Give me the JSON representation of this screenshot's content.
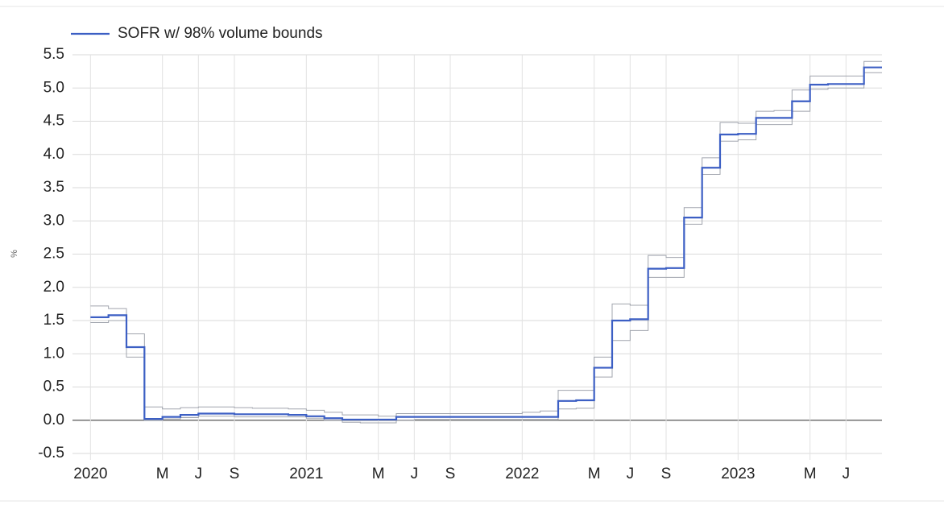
{
  "chart_data": {
    "type": "line",
    "ylabel": "%",
    "x": [
      "2020-01",
      "2020-02",
      "2020-03",
      "2020-04",
      "2020-05",
      "2020-06",
      "2020-07",
      "2020-08",
      "2020-09",
      "2020-10",
      "2020-11",
      "2020-12",
      "2021-01",
      "2021-02",
      "2021-03",
      "2021-04",
      "2021-05",
      "2021-06",
      "2021-07",
      "2021-08",
      "2021-09",
      "2021-10",
      "2021-11",
      "2021-12",
      "2022-01",
      "2022-02",
      "2022-03",
      "2022-04",
      "2022-05",
      "2022-06",
      "2022-07",
      "2022-08",
      "2022-09",
      "2022-10",
      "2022-11",
      "2022-12",
      "2023-01",
      "2023-02",
      "2023-03",
      "2023-04",
      "2023-05",
      "2023-06",
      "2023-07",
      "2023-08"
    ],
    "series": [
      {
        "name": "SOFR w/ 98% volume bounds",
        "color": "#3c5fc4",
        "values": [
          1.55,
          1.58,
          1.1,
          0.02,
          0.05,
          0.08,
          0.1,
          0.1,
          0.09,
          0.09,
          0.09,
          0.08,
          0.06,
          0.03,
          0.01,
          0.01,
          0.01,
          0.05,
          0.05,
          0.05,
          0.05,
          0.05,
          0.05,
          0.05,
          0.05,
          0.05,
          0.29,
          0.3,
          0.79,
          1.5,
          1.52,
          2.28,
          2.29,
          3.05,
          3.8,
          4.3,
          4.31,
          4.55,
          4.55,
          4.8,
          5.05,
          5.06,
          5.06,
          5.31
        ]
      }
    ],
    "bounds": {
      "color": "#a0a4ad",
      "upper": [
        1.72,
        1.68,
        1.3,
        0.2,
        0.17,
        0.19,
        0.2,
        0.2,
        0.19,
        0.18,
        0.18,
        0.17,
        0.15,
        0.12,
        0.08,
        0.08,
        0.06,
        0.1,
        0.1,
        0.1,
        0.1,
        0.1,
        0.1,
        0.1,
        0.12,
        0.14,
        0.45,
        0.45,
        0.95,
        1.75,
        1.73,
        2.48,
        2.45,
        3.2,
        3.95,
        4.48,
        4.47,
        4.65,
        4.66,
        4.97,
        5.18,
        5.18,
        5.18,
        5.4
      ],
      "lower": [
        1.47,
        1.5,
        0.95,
        0.0,
        0.02,
        0.04,
        0.06,
        0.06,
        0.05,
        0.05,
        0.05,
        0.05,
        0.03,
        0.0,
        -0.03,
        -0.04,
        -0.04,
        0.0,
        0.01,
        0.01,
        0.01,
        0.01,
        0.01,
        0.01,
        0.01,
        0.01,
        0.17,
        0.18,
        0.65,
        1.2,
        1.35,
        2.15,
        2.15,
        2.95,
        3.7,
        4.2,
        4.22,
        4.45,
        4.45,
        4.65,
        4.98,
        5.0,
        5.0,
        5.23
      ]
    },
    "xlim": [
      "2019-12",
      "2023-09"
    ],
    "xticks": [
      {
        "value": "2020-01",
        "label": "2020"
      },
      {
        "value": "2020-05",
        "label": "M"
      },
      {
        "value": "2020-07",
        "label": "J"
      },
      {
        "value": "2020-09",
        "label": "S"
      },
      {
        "value": "2021-01",
        "label": "2021"
      },
      {
        "value": "2021-05",
        "label": "M"
      },
      {
        "value": "2021-07",
        "label": "J"
      },
      {
        "value": "2021-09",
        "label": "S"
      },
      {
        "value": "2022-01",
        "label": "2022"
      },
      {
        "value": "2022-05",
        "label": "M"
      },
      {
        "value": "2022-07",
        "label": "J"
      },
      {
        "value": "2022-09",
        "label": "S"
      },
      {
        "value": "2023-01",
        "label": "2023"
      },
      {
        "value": "2023-05",
        "label": "M"
      },
      {
        "value": "2023-07",
        "label": "J"
      }
    ],
    "ylim": [
      -0.5,
      5.5
    ],
    "yticks": [
      {
        "value": -0.5,
        "label": "-0.5"
      },
      {
        "value": 0,
        "label": "0.0"
      },
      {
        "value": 0.5,
        "label": "0.5"
      },
      {
        "value": 1,
        "label": "1.0"
      },
      {
        "value": 1.5,
        "label": "1.5"
      },
      {
        "value": 2,
        "label": "2.0"
      },
      {
        "value": 2.5,
        "label": "2.5"
      },
      {
        "value": 3,
        "label": "3.0"
      },
      {
        "value": 3.5,
        "label": "3.5"
      },
      {
        "value": 4,
        "label": "4.0"
      },
      {
        "value": 4.5,
        "label": "4.5"
      },
      {
        "value": 5,
        "label": "5.0"
      },
      {
        "value": 5.5,
        "label": "5.5"
      }
    ],
    "grid": true
  }
}
